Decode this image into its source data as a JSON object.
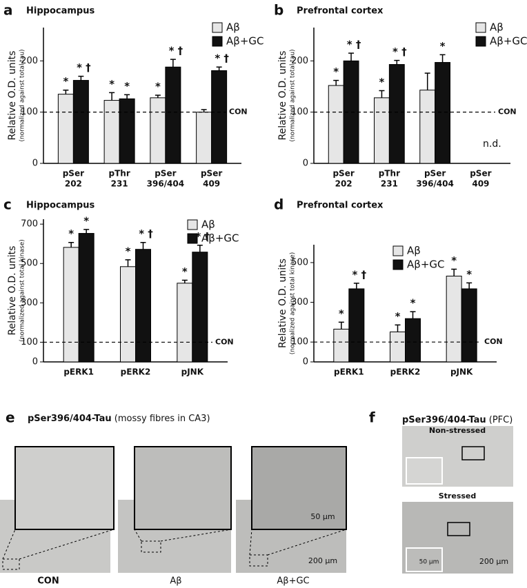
{
  "chart_data": [
    {
      "type": "bar",
      "label": "a",
      "title": "Hippocampus",
      "y_label": "Relative O.D. units",
      "y_sublabel": "(normalized against total tau)",
      "categories": [
        [
          "pSer",
          "202"
        ],
        [
          "pThr",
          "231"
        ],
        [
          "pSer",
          "396/404"
        ],
        [
          "pSer",
          "409"
        ]
      ],
      "series": [
        {
          "name": "Aβ",
          "color": "#e6e6e6",
          "values": [
            135,
            123,
            128,
            100
          ],
          "errors": [
            8,
            15,
            5,
            5
          ],
          "marks": [
            "*",
            "*",
            "*",
            null
          ]
        },
        {
          "name": "Aβ+GC",
          "color": "#111111",
          "values": [
            162,
            126,
            188,
            181
          ],
          "errors": [
            8,
            8,
            15,
            7
          ],
          "marks": [
            "* †",
            "*",
            "* †",
            "* †"
          ]
        }
      ],
      "ylim": [
        0,
        265
      ],
      "yticks": [
        0,
        100,
        200
      ],
      "reference_line": {
        "value": 100,
        "label": "CON"
      },
      "legend": "top-right"
    },
    {
      "type": "bar",
      "label": "b",
      "title": "Prefrontal cortex",
      "y_label": "Relative O.D. units",
      "y_sublabel": "(normalized against total tau)",
      "categories": [
        [
          "pSer",
          "202"
        ],
        [
          "pThr",
          "231"
        ],
        [
          "pSer",
          "396/404"
        ],
        [
          "pSer",
          "409"
        ]
      ],
      "series": [
        {
          "name": "Aβ",
          "color": "#e6e6e6",
          "values": [
            152,
            128,
            143,
            null
          ],
          "errors": [
            10,
            14,
            33,
            null
          ],
          "marks": [
            "*",
            "*",
            null,
            null
          ]
        },
        {
          "name": "Aβ+GC",
          "color": "#111111",
          "values": [
            200,
            193,
            197,
            null
          ],
          "errors": [
            15,
            8,
            15,
            null
          ],
          "marks": [
            "* †",
            "* †",
            "*",
            null
          ]
        }
      ],
      "ylim": [
        0,
        265
      ],
      "yticks": [
        0,
        100,
        200
      ],
      "reference_line": {
        "value": 100,
        "label": "CON"
      },
      "annotation": "n.d.",
      "legend": "top-right"
    },
    {
      "type": "bar",
      "label": "c",
      "title": "Hippocampus",
      "y_label": "Relative O.D. units",
      "y_sublabel": "(normalized against total kinase)",
      "categories": [
        [
          "pERK1"
        ],
        [
          "pERK2"
        ],
        [
          "pJNK"
        ]
      ],
      "series": [
        {
          "name": "Aβ",
          "color": "#e6e6e6",
          "values": [
            582,
            484,
            400
          ],
          "errors": [
            25,
            35,
            15
          ],
          "marks": [
            "*",
            "*",
            "*"
          ]
        },
        {
          "name": "Aβ+GC",
          "color": "#111111",
          "values": [
            653,
            572,
            558
          ],
          "errors": [
            20,
            35,
            35
          ],
          "marks": [
            "*",
            "* †",
            "* †"
          ]
        }
      ],
      "ylim": [
        0,
        725
      ],
      "yticks": [
        0,
        100,
        300,
        500,
        700
      ],
      "reference_line": {
        "value": 100,
        "label": "CON"
      },
      "legend": "top-right"
    },
    {
      "type": "bar",
      "label": "d",
      "title": "Prefrontal cortex",
      "y_label": "Relative O.D. units",
      "y_sublabel": "(normalized against total kinase)",
      "categories": [
        [
          "pERK1"
        ],
        [
          "pERK2"
        ],
        [
          "pJNK"
        ]
      ],
      "series": [
        {
          "name": "Aβ",
          "color": "#e6e6e6",
          "values": [
            165,
            151,
            432
          ],
          "errors": [
            35,
            35,
            35
          ],
          "marks": [
            "*",
            "*",
            "*"
          ]
        },
        {
          "name": "Aβ+GC",
          "color": "#111111",
          "values": [
            368,
            218,
            368
          ],
          "errors": [
            28,
            35,
            30
          ],
          "marks": [
            "* †",
            "*",
            "*"
          ]
        }
      ],
      "ylim": [
        0,
        590
      ],
      "yticks": [
        0,
        100,
        300,
        500
      ],
      "reference_line": {
        "value": 100,
        "label": "CON"
      },
      "legend": "top-right"
    }
  ],
  "micrographs": {
    "e": {
      "label": "e",
      "title": "pSer396/404-Tau",
      "title_note": "(mossy fibres in CA3)",
      "groups": [
        "CON",
        "Aβ",
        "Aβ+GC"
      ],
      "scale_inset": "50 µm",
      "scale_main": "200 µm"
    },
    "f": {
      "label": "f",
      "title": "pSer396/404-Tau",
      "title_note": "(PFC)",
      "groups": [
        "Non-stressed",
        "Stressed"
      ],
      "scale_inset": "50 µm",
      "scale_main": "200 µm"
    }
  }
}
